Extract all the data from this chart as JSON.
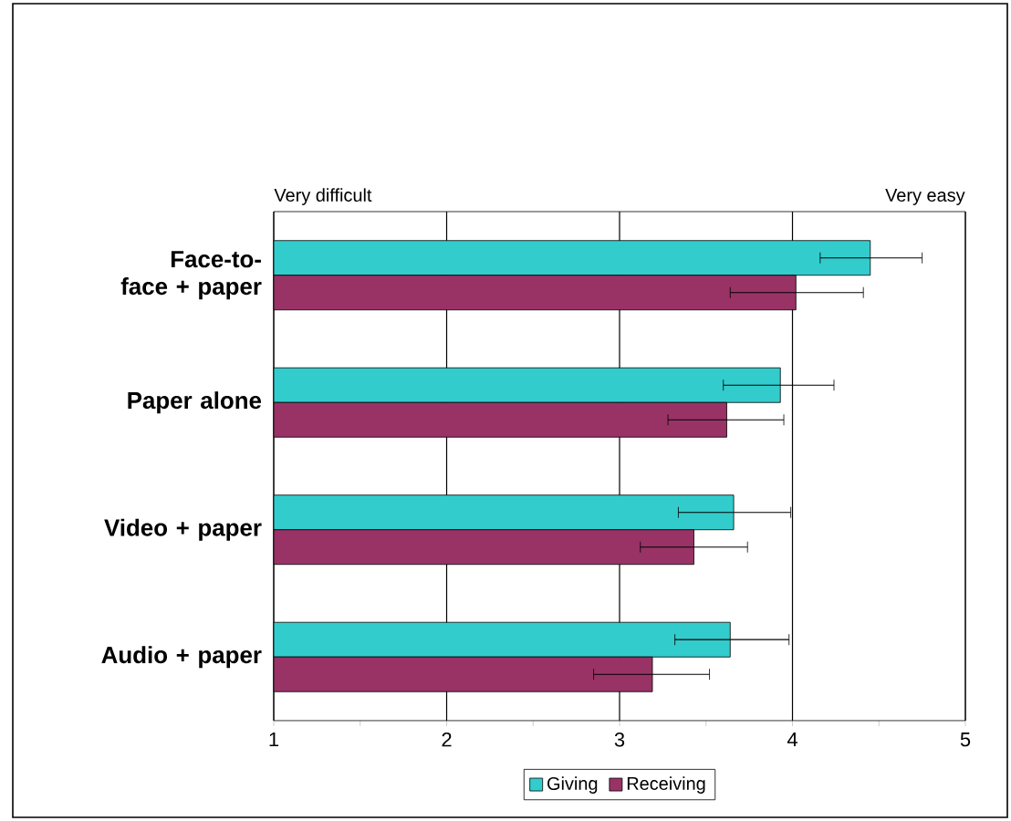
{
  "chart_data": {
    "type": "bar",
    "orientation": "horizontal",
    "categories": [
      "Face-to-face + paper",
      "Paper alone",
      "Video + paper",
      "Audio + paper"
    ],
    "series": [
      {
        "name": "Giving",
        "color": "#33cccc",
        "values": [
          4.45,
          3.93,
          3.66,
          3.64
        ],
        "errors": [
          [
            4.16,
            4.75
          ],
          [
            3.6,
            4.24
          ],
          [
            3.34,
            3.99
          ],
          [
            3.32,
            3.98
          ]
        ]
      },
      {
        "name": "Receiving",
        "color": "#993366",
        "values": [
          4.02,
          3.62,
          3.43,
          3.19
        ],
        "errors": [
          [
            3.64,
            4.41
          ],
          [
            3.28,
            3.95
          ],
          [
            3.12,
            3.74
          ],
          [
            2.85,
            3.52
          ]
        ]
      }
    ],
    "xlim": [
      1,
      5
    ],
    "xticks": [
      1,
      {
        "value": 1.5,
        "label": null
      },
      2,
      {
        "value": 2.5,
        "label": null
      },
      3,
      {
        "value": 3.5,
        "label": null
      },
      4,
      {
        "value": 4.5,
        "label": null
      },
      5
    ],
    "annotations": [
      "Very difficult",
      "Very easy"
    ],
    "grid": "x",
    "legend": "bottom"
  }
}
